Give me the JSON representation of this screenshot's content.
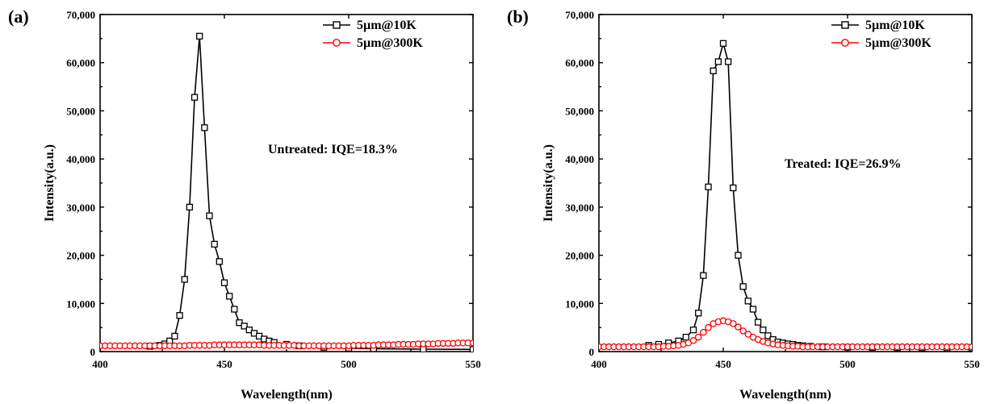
{
  "chart_data": [
    {
      "type": "line",
      "panel_label": "(a)",
      "xlabel": "Wavelength(nm)",
      "ylabel": "Intensity(a.u.)",
      "xlim": [
        400,
        550
      ],
      "ylim": [
        0,
        70000
      ],
      "x_ticks": [
        400,
        450,
        500,
        550
      ],
      "y_ticks": [
        0,
        10000,
        20000,
        30000,
        40000,
        50000,
        60000,
        70000
      ],
      "y_tick_labels": [
        "0",
        "10,000",
        "20,000",
        "30,000",
        "40,000",
        "50,000",
        "60,000",
        "70,000"
      ],
      "legend_position": "top-right",
      "annotation": "Untreated: IQE=18.3%",
      "series": [
        {
          "name": "5µm@10K",
          "color": "#000000",
          "marker": "square",
          "points": [
            [
              420,
              1100
            ],
            [
              424,
              1300
            ],
            [
              426,
              1600
            ],
            [
              428,
              2200
            ],
            [
              430,
              3200
            ],
            [
              432,
              7500
            ],
            [
              434,
              15000
            ],
            [
              436,
              30000
            ],
            [
              438,
              52800
            ],
            [
              440,
              65500
            ],
            [
              442,
              46500
            ],
            [
              444,
              28200
            ],
            [
              446,
              22300
            ],
            [
              448,
              18700
            ],
            [
              450,
              14300
            ],
            [
              452,
              11500
            ],
            [
              454,
              8800
            ],
            [
              456,
              6000
            ],
            [
              458,
              5300
            ],
            [
              460,
              4500
            ],
            [
              462,
              3800
            ],
            [
              464,
              3200
            ],
            [
              466,
              2600
            ],
            [
              468,
              2200
            ],
            [
              470,
              1900
            ],
            [
              475,
              1500
            ],
            [
              480,
              1200
            ],
            [
              490,
              900
            ],
            [
              500,
              700
            ],
            [
              510,
              600
            ],
            [
              530,
              500
            ],
            [
              550,
              450
            ]
          ]
        },
        {
          "name": "5µm@300K",
          "color": "#ff0000",
          "marker": "circle",
          "points": [
            [
              400,
              1200
            ],
            [
              402,
              1200
            ],
            [
              404,
              1200
            ],
            [
              406,
              1200
            ],
            [
              408,
              1200
            ],
            [
              410,
              1200
            ],
            [
              412,
              1200
            ],
            [
              414,
              1200
            ],
            [
              416,
              1200
            ],
            [
              418,
              1200
            ],
            [
              420,
              1200
            ],
            [
              422,
              1200
            ],
            [
              424,
              1200
            ],
            [
              426,
              1200
            ],
            [
              428,
              1200
            ],
            [
              430,
              1200
            ],
            [
              432,
              1200
            ],
            [
              434,
              1200
            ],
            [
              436,
              1300
            ],
            [
              438,
              1300
            ],
            [
              440,
              1300
            ],
            [
              442,
              1300
            ],
            [
              444,
              1300
            ],
            [
              446,
              1400
            ],
            [
              448,
              1400
            ],
            [
              450,
              1400
            ],
            [
              452,
              1400
            ],
            [
              454,
              1400
            ],
            [
              456,
              1400
            ],
            [
              458,
              1400
            ],
            [
              460,
              1400
            ],
            [
              462,
              1400
            ],
            [
              464,
              1400
            ],
            [
              466,
              1300
            ],
            [
              468,
              1300
            ],
            [
              470,
              1300
            ],
            [
              472,
              1300
            ],
            [
              474,
              1300
            ],
            [
              476,
              1300
            ],
            [
              478,
              1300
            ],
            [
              480,
              1200
            ],
            [
              482,
              1200
            ],
            [
              484,
              1200
            ],
            [
              486,
              1200
            ],
            [
              488,
              1200
            ],
            [
              490,
              1200
            ],
            [
              492,
              1200
            ],
            [
              494,
              1200
            ],
            [
              496,
              1200
            ],
            [
              498,
              1200
            ],
            [
              500,
              1200
            ],
            [
              502,
              1300
            ],
            [
              504,
              1300
            ],
            [
              506,
              1300
            ],
            [
              508,
              1300
            ],
            [
              510,
              1300
            ],
            [
              512,
              1400
            ],
            [
              514,
              1400
            ],
            [
              516,
              1400
            ],
            [
              518,
              1400
            ],
            [
              520,
              1500
            ],
            [
              522,
              1500
            ],
            [
              524,
              1500
            ],
            [
              526,
              1500
            ],
            [
              528,
              1600
            ],
            [
              530,
              1600
            ],
            [
              532,
              1600
            ],
            [
              534,
              1600
            ],
            [
              536,
              1700
            ],
            [
              538,
              1700
            ],
            [
              540,
              1700
            ],
            [
              542,
              1700
            ],
            [
              544,
              1800
            ],
            [
              546,
              1800
            ],
            [
              548,
              1800
            ],
            [
              550,
              1800
            ]
          ]
        }
      ]
    },
    {
      "type": "line",
      "panel_label": "(b)",
      "xlabel": "Wavelength(nm)",
      "ylabel": "Intensity(a.u.)",
      "xlim": [
        400,
        550
      ],
      "ylim": [
        0,
        70000
      ],
      "x_ticks": [
        400,
        450,
        500,
        550
      ],
      "y_ticks": [
        0,
        10000,
        20000,
        30000,
        40000,
        50000,
        60000,
        70000
      ],
      "y_tick_labels": [
        "0",
        "10,000",
        "20,000",
        "30,000",
        "40,000",
        "50,000",
        "60,000",
        "70,000"
      ],
      "legend_position": "top-right",
      "annotation": "Treated: IQE=26.9%",
      "series": [
        {
          "name": "5µm@10K",
          "color": "#000000",
          "marker": "square",
          "points": [
            [
              420,
              1300
            ],
            [
              424,
              1500
            ],
            [
              428,
              1800
            ],
            [
              432,
              2200
            ],
            [
              435,
              3000
            ],
            [
              438,
              4500
            ],
            [
              440,
              8000
            ],
            [
              442,
              15800
            ],
            [
              444,
              34200
            ],
            [
              446,
              58300
            ],
            [
              448,
              60200
            ],
            [
              450,
              64000
            ],
            [
              452,
              60200
            ],
            [
              454,
              34000
            ],
            [
              456,
              20000
            ],
            [
              458,
              13500
            ],
            [
              460,
              10500
            ],
            [
              462,
              8800
            ],
            [
              464,
              6100
            ],
            [
              466,
              4500
            ],
            [
              468,
              3300
            ],
            [
              470,
              2500
            ],
            [
              472,
              2000
            ],
            [
              474,
              1800
            ],
            [
              476,
              1600
            ],
            [
              478,
              1500
            ],
            [
              480,
              1300
            ],
            [
              482,
              1200
            ],
            [
              485,
              1100
            ],
            [
              490,
              1000
            ],
            [
              500,
              900
            ],
            [
              510,
              850
            ],
            [
              520,
              800
            ],
            [
              530,
              780
            ],
            [
              540,
              760
            ],
            [
              550,
              750
            ]
          ]
        },
        {
          "name": "5µm@300K",
          "color": "#ff0000",
          "marker": "circle",
          "points": [
            [
              400,
              1000
            ],
            [
              402,
              1000
            ],
            [
              404,
              1000
            ],
            [
              406,
              1000
            ],
            [
              408,
              1000
            ],
            [
              410,
              1000
            ],
            [
              412,
              1000
            ],
            [
              414,
              1000
            ],
            [
              416,
              1000
            ],
            [
              418,
              1000
            ],
            [
              420,
              1000
            ],
            [
              422,
              1000
            ],
            [
              424,
              1000
            ],
            [
              426,
              1100
            ],
            [
              428,
              1100
            ],
            [
              430,
              1200
            ],
            [
              432,
              1300
            ],
            [
              434,
              1500
            ],
            [
              436,
              1800
            ],
            [
              438,
              2300
            ],
            [
              440,
              3000
            ],
            [
              442,
              4000
            ],
            [
              444,
              5000
            ],
            [
              446,
              5800
            ],
            [
              448,
              6200
            ],
            [
              450,
              6400
            ],
            [
              452,
              6200
            ],
            [
              454,
              5800
            ],
            [
              456,
              5100
            ],
            [
              458,
              4300
            ],
            [
              460,
              3600
            ],
            [
              462,
              3000
            ],
            [
              464,
              2500
            ],
            [
              466,
              2100
            ],
            [
              468,
              1800
            ],
            [
              470,
              1600
            ],
            [
              472,
              1400
            ],
            [
              474,
              1300
            ],
            [
              476,
              1200
            ],
            [
              478,
              1100
            ],
            [
              480,
              1100
            ],
            [
              482,
              1000
            ],
            [
              484,
              1000
            ],
            [
              486,
              1000
            ],
            [
              488,
              1000
            ],
            [
              490,
              1000
            ],
            [
              492,
              1000
            ],
            [
              494,
              1000
            ],
            [
              496,
              1000
            ],
            [
              498,
              1000
            ],
            [
              500,
              1000
            ],
            [
              502,
              1000
            ],
            [
              504,
              1000
            ],
            [
              506,
              1000
            ],
            [
              508,
              1000
            ],
            [
              510,
              1000
            ],
            [
              512,
              1000
            ],
            [
              514,
              1000
            ],
            [
              516,
              1000
            ],
            [
              518,
              1000
            ],
            [
              520,
              1000
            ],
            [
              522,
              1000
            ],
            [
              524,
              1000
            ],
            [
              526,
              1000
            ],
            [
              528,
              1000
            ],
            [
              530,
              1000
            ],
            [
              532,
              1000
            ],
            [
              534,
              1000
            ],
            [
              536,
              1000
            ],
            [
              538,
              1000
            ],
            [
              540,
              1000
            ],
            [
              542,
              1000
            ],
            [
              544,
              1000
            ],
            [
              546,
              1000
            ],
            [
              548,
              1000
            ],
            [
              550,
              1000
            ]
          ]
        }
      ]
    }
  ]
}
